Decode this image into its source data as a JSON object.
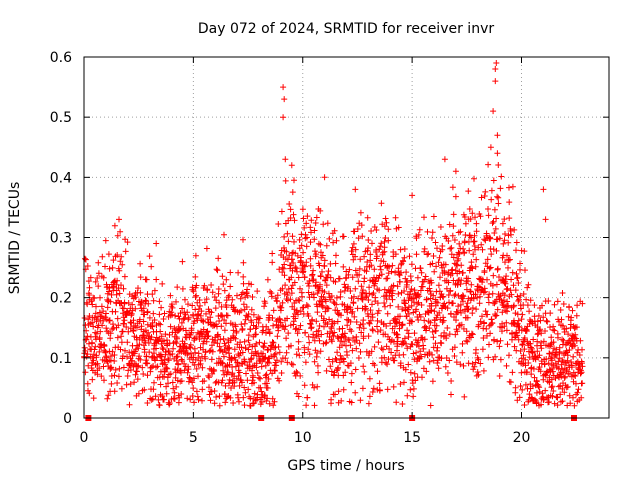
{
  "chart_data": {
    "type": "scatter",
    "title": "Day 072 of 2024, SRMTID for receiver invr",
    "xlabel": "GPS time / hours",
    "ylabel": "SRMTID / TECUs",
    "xlim": [
      0,
      24
    ],
    "ylim": [
      0,
      0.6
    ],
    "x_ticks": [
      0,
      5,
      10,
      15,
      20
    ],
    "x_tick_labels": [
      "0",
      "5",
      "10",
      "15",
      "20"
    ],
    "y_ticks": [
      0,
      0.1,
      0.2,
      0.3,
      0.4,
      0.5,
      0.6
    ],
    "y_tick_labels": [
      "0",
      "0.1",
      "0.2",
      "0.3",
      "0.4",
      "0.5",
      "0.6"
    ],
    "grid": true,
    "marker": "+",
    "series_color": "#ff0000",
    "baseline_markers_x": [
      0.2,
      8.1,
      9.5,
      15.0,
      22.4
    ],
    "trend": [
      [
        0.0,
        0.15
      ],
      [
        0.5,
        0.13
      ],
      [
        1.0,
        0.15
      ],
      [
        1.5,
        0.17
      ],
      [
        2.0,
        0.15
      ],
      [
        2.5,
        0.12
      ],
      [
        3.0,
        0.13
      ],
      [
        3.5,
        0.1
      ],
      [
        4.0,
        0.1
      ],
      [
        4.5,
        0.12
      ],
      [
        5.0,
        0.14
      ],
      [
        5.5,
        0.13
      ],
      [
        6.0,
        0.12
      ],
      [
        6.5,
        0.12
      ],
      [
        7.0,
        0.12
      ],
      [
        7.5,
        0.13
      ],
      [
        8.0,
        0.09
      ],
      [
        8.5,
        0.11
      ],
      [
        9.0,
        0.18
      ],
      [
        9.5,
        0.22
      ],
      [
        10.0,
        0.21
      ],
      [
        10.5,
        0.2
      ],
      [
        11.0,
        0.19
      ],
      [
        11.5,
        0.16
      ],
      [
        12.0,
        0.17
      ],
      [
        12.5,
        0.19
      ],
      [
        13.0,
        0.2
      ],
      [
        13.5,
        0.19
      ],
      [
        14.0,
        0.18
      ],
      [
        14.5,
        0.16
      ],
      [
        15.0,
        0.16
      ],
      [
        15.5,
        0.17
      ],
      [
        16.0,
        0.19
      ],
      [
        16.5,
        0.2
      ],
      [
        17.0,
        0.2
      ],
      [
        17.5,
        0.21
      ],
      [
        18.0,
        0.22
      ],
      [
        18.5,
        0.23
      ],
      [
        19.0,
        0.24
      ],
      [
        19.5,
        0.2
      ],
      [
        20.0,
        0.15
      ],
      [
        20.5,
        0.11
      ],
      [
        21.0,
        0.09
      ],
      [
        21.5,
        0.1
      ],
      [
        22.0,
        0.1
      ],
      [
        22.5,
        0.1
      ],
      [
        22.8,
        0.09
      ]
    ],
    "spikes": [
      [
        9.1,
        0.55
      ],
      [
        9.15,
        0.53
      ],
      [
        9.1,
        0.5
      ],
      [
        9.2,
        0.43
      ],
      [
        9.5,
        0.42
      ],
      [
        11.0,
        0.4
      ],
      [
        12.4,
        0.38
      ],
      [
        15.0,
        0.37
      ],
      [
        16.5,
        0.43
      ],
      [
        17.0,
        0.41
      ],
      [
        18.7,
        0.51
      ],
      [
        18.8,
        0.58
      ],
      [
        18.85,
        0.59
      ],
      [
        18.8,
        0.56
      ],
      [
        18.9,
        0.47
      ],
      [
        18.9,
        0.44
      ],
      [
        18.6,
        0.45
      ],
      [
        1.6,
        0.33
      ],
      [
        3.3,
        0.29
      ],
      [
        4.5,
        0.26
      ],
      [
        21.0,
        0.38
      ],
      [
        21.1,
        0.33
      ],
      [
        2.9,
        0.025
      ],
      [
        21.0,
        0.03
      ]
    ]
  }
}
